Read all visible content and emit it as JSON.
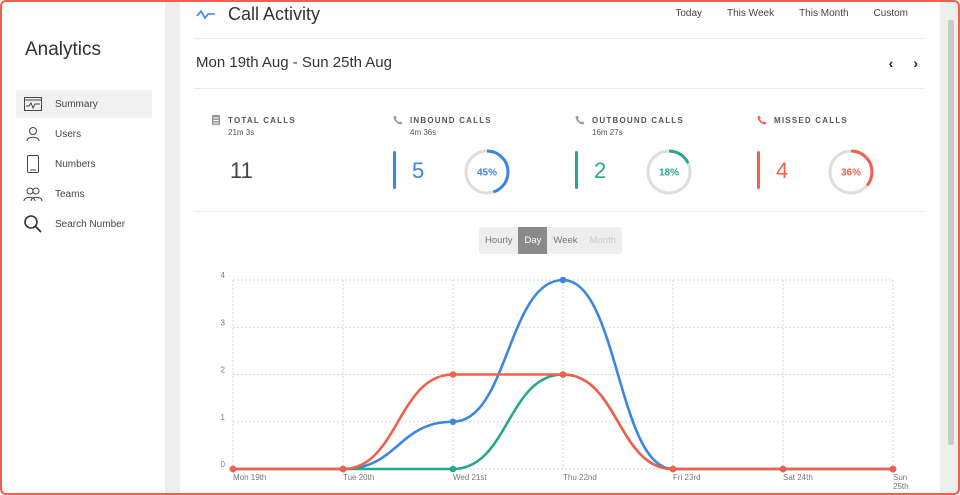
{
  "sidebar": {
    "title": "Analytics",
    "items": [
      {
        "label": "Summary",
        "icon": "summary-icon",
        "active": true
      },
      {
        "label": "Users",
        "icon": "user-icon"
      },
      {
        "label": "Numbers",
        "icon": "phone-icon"
      },
      {
        "label": "Teams",
        "icon": "team-icon"
      },
      {
        "label": "Search Number",
        "icon": "search-icon"
      }
    ]
  },
  "header": {
    "title": "Call Activity",
    "icon": "activity-icon",
    "ranges": [
      "Today",
      "This Week",
      "This Month",
      "Custom"
    ],
    "date_range": "Mon 19th Aug - Sun 25th Aug",
    "prev": "‹",
    "next": "›"
  },
  "stats": [
    {
      "key": "total",
      "label": "TOTAL CALLS",
      "duration": "21m 3s",
      "value": "11",
      "icon": "document-icon",
      "color": "#555555"
    },
    {
      "key": "inbound",
      "label": "INBOUND CALLS",
      "duration": "4m 36s",
      "value": "5",
      "percent_label": "45%",
      "percent": 45,
      "icon": "phone-icon",
      "color": "#3b86e0"
    },
    {
      "key": "outbound",
      "label": "OUTBOUND CALLS",
      "duration": "16m 27s",
      "value": "2",
      "percent_label": "18%",
      "percent": 18,
      "icon": "phone-icon",
      "color": "#27a88e"
    },
    {
      "key": "missed",
      "label": "MISSED CALLS",
      "duration": "",
      "value": "4",
      "percent_label": "36%",
      "percent": 36,
      "icon": "phone-missed-icon",
      "color": "#f0604a"
    }
  ],
  "granularity": {
    "options": [
      "Hourly",
      "Day",
      "Week",
      "Month"
    ],
    "selected": "Day",
    "disabled": [
      "Month"
    ]
  },
  "chart_data": {
    "type": "line",
    "x": [
      "Mon 19th",
      "Tue 20th",
      "Wed 21st",
      "Thu 22nd",
      "Fri 23rd",
      "Sat 24th",
      "Sun 25th"
    ],
    "ylim": [
      0,
      4
    ],
    "yticks": [
      "0",
      "1",
      "2",
      "3",
      "4"
    ],
    "grid": true,
    "series": [
      {
        "color": "#3b86e0",
        "values": [
          0,
          0,
          1,
          4,
          0,
          0,
          0
        ]
      },
      {
        "color": "#27a88e",
        "values": [
          0,
          0,
          0,
          2,
          0,
          0,
          0
        ]
      },
      {
        "color": "#f0604a",
        "values": [
          0,
          0,
          2,
          2,
          0,
          0,
          0
        ]
      }
    ]
  }
}
